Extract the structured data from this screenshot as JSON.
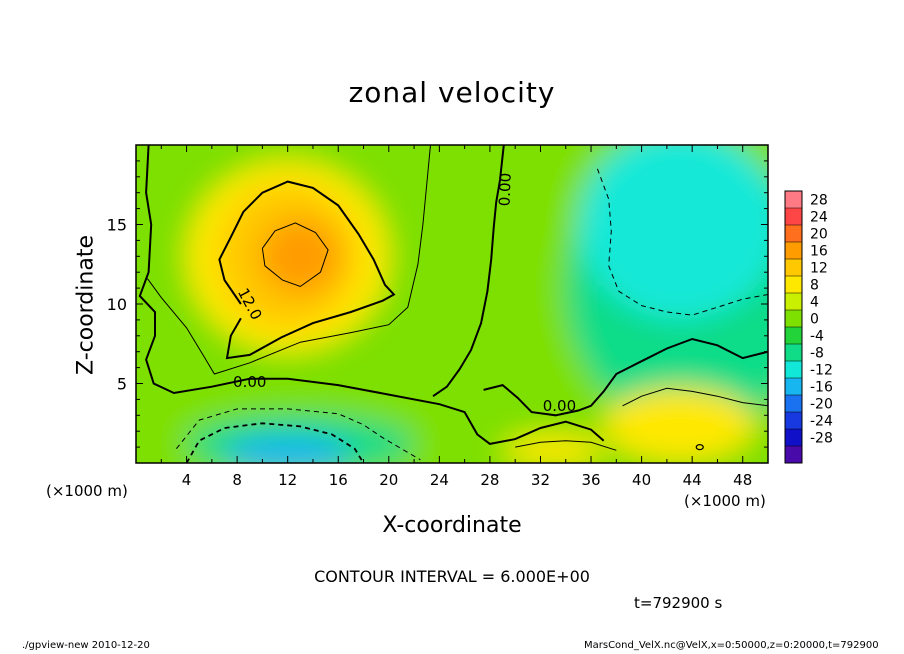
{
  "chart_data": {
    "type": "heatmap",
    "title": "zonal velocity",
    "xlabel": "X-coordinate",
    "ylabel": "Z-coordinate",
    "x_unit": "(×1000 m)",
    "x_ticks": [
      4,
      8,
      12,
      16,
      20,
      24,
      28,
      32,
      36,
      40,
      44,
      48
    ],
    "y_ticks": [
      5,
      10,
      15
    ],
    "xlim": [
      0,
      50
    ],
    "ylim": [
      0,
      20
    ],
    "colorbar_ticks": [
      28,
      24,
      20,
      16,
      12,
      8,
      4,
      0,
      -4,
      -8,
      -12,
      -16,
      -20,
      -24,
      -28
    ],
    "colorbar_colors": [
      "#ff7a85",
      "#ff4646",
      "#ff6f1e",
      "#ff9c00",
      "#ffc800",
      "#ffe800",
      "#c8f000",
      "#7ee000",
      "#22d43a",
      "#10dc88",
      "#12e8d8",
      "#18b6f0",
      "#1a72f0",
      "#1838e0",
      "#1010c8",
      "#480aa8"
    ],
    "color_range": [
      -30,
      30
    ],
    "contour_labels": [
      {
        "text": "12.0",
        "x": 9.0,
        "y": 10.0
      },
      {
        "text": "0.00",
        "x": 9.0,
        "y": 5.1
      },
      {
        "text": "0.00",
        "x": 33.5,
        "y": 3.6
      },
      {
        "text": "0.00",
        "x": 29.2,
        "y": 17.2
      }
    ],
    "contour_interval": "CONTOUR INTERVAL = 6.000E+00",
    "time": "t=792900 s"
  },
  "footer": {
    "left": "./gpview-new  2010-12-20",
    "right": "MarsCond_VelX.nc@VelX,x=0:50000,z=0:20000,t=792900"
  }
}
